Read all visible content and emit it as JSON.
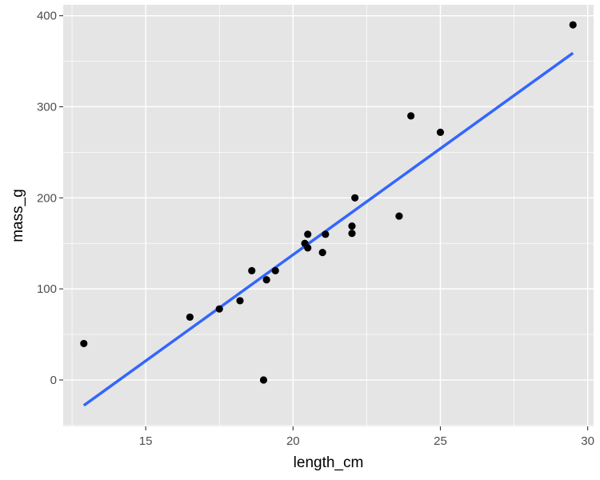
{
  "chart_data": {
    "type": "scatter",
    "title": "",
    "xlabel": "length_cm",
    "ylabel": "mass_g",
    "xlim": [
      12.2,
      30.2
    ],
    "ylim": [
      -51,
      412
    ],
    "x_ticks": [
      15,
      20,
      25,
      30
    ],
    "x_tick_labels": [
      "15",
      "20",
      "25",
      "30"
    ],
    "y_ticks": [
      0,
      100,
      200,
      300,
      400
    ],
    "y_tick_labels": [
      "0",
      "100",
      "200",
      "300",
      "400"
    ],
    "grid": true,
    "legend": "none",
    "points": [
      {
        "x": 12.9,
        "y": 40
      },
      {
        "x": 16.5,
        "y": 69
      },
      {
        "x": 17.5,
        "y": 78
      },
      {
        "x": 18.2,
        "y": 87
      },
      {
        "x": 18.6,
        "y": 120
      },
      {
        "x": 19.0,
        "y": 0
      },
      {
        "x": 19.1,
        "y": 110
      },
      {
        "x": 19.4,
        "y": 120
      },
      {
        "x": 20.4,
        "y": 150
      },
      {
        "x": 20.5,
        "y": 145
      },
      {
        "x": 20.5,
        "y": 160
      },
      {
        "x": 21.0,
        "y": 140
      },
      {
        "x": 21.1,
        "y": 160
      },
      {
        "x": 22.0,
        "y": 169
      },
      {
        "x": 22.0,
        "y": 161
      },
      {
        "x": 22.1,
        "y": 200
      },
      {
        "x": 23.6,
        "y": 180
      },
      {
        "x": 24.0,
        "y": 290
      },
      {
        "x": 25.0,
        "y": 272
      },
      {
        "x": 29.5,
        "y": 390
      }
    ],
    "fit_line": {
      "x": [
        12.9,
        29.5
      ],
      "y": [
        -28,
        359
      ]
    },
    "colors": {
      "panel_background": "#e5e5e5",
      "grid": "#ffffff",
      "points": "#000000",
      "fit_line": "#3366ff"
    }
  }
}
